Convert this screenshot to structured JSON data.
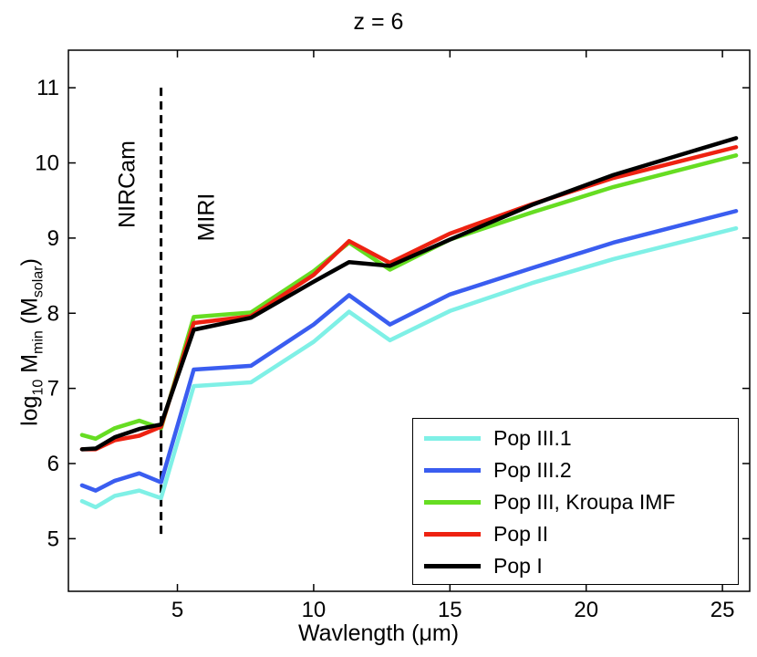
{
  "chart_data": {
    "type": "line",
    "title": "z = 6",
    "xlabel_prefix": "Wavlength (",
    "xlabel_mu": "μm",
    "xlabel_suffix": ")",
    "ylabel_main": "log",
    "ylabel_sub1": "10",
    "ylabel_mid": " M",
    "ylabel_sub2": "min",
    "ylabel_open": " (M",
    "ylabel_sub3": "solar",
    "ylabel_close": ")",
    "xlim": [
      1,
      26
    ],
    "ylim": [
      4.3,
      11.5
    ],
    "xticks": [
      5,
      10,
      15,
      20,
      25
    ],
    "yticks": [
      5,
      6,
      7,
      8,
      9,
      10,
      11
    ],
    "annotations": {
      "nircam": "NIRCam",
      "miri": "MIRI",
      "divider_x": 4.4,
      "divider_y_range": [
        5.0,
        11.0
      ]
    },
    "legend_position": "bottom-right",
    "series": [
      {
        "name": "Pop III.1",
        "color": "#7ff0e6",
        "x": [
          1.5,
          2.0,
          2.7,
          3.6,
          4.4,
          5.6,
          7.7,
          10.0,
          11.3,
          12.8,
          15.0,
          18.0,
          21.0,
          25.5
        ],
        "y": [
          5.5,
          5.42,
          5.57,
          5.64,
          5.54,
          7.03,
          7.08,
          7.62,
          8.02,
          7.64,
          8.03,
          8.4,
          8.72,
          9.13
        ]
      },
      {
        "name": "Pop III.2",
        "color": "#3a5df0",
        "x": [
          1.5,
          2.0,
          2.7,
          3.6,
          4.4,
          5.6,
          7.7,
          10.0,
          11.3,
          12.8,
          15.0,
          18.0,
          21.0,
          25.5
        ],
        "y": [
          5.71,
          5.64,
          5.77,
          5.87,
          5.75,
          7.25,
          7.3,
          7.85,
          8.24,
          7.85,
          8.25,
          8.6,
          8.94,
          9.36
        ]
      },
      {
        "name": "Pop III, Kroupa IMF",
        "color": "#66dd22",
        "x": [
          1.5,
          2.0,
          2.7,
          3.6,
          4.4,
          5.6,
          7.7,
          10.0,
          11.3,
          12.8,
          15.0,
          18.0,
          21.0,
          25.5
        ],
        "y": [
          6.38,
          6.33,
          6.47,
          6.57,
          6.47,
          7.95,
          8.01,
          8.56,
          8.94,
          8.58,
          8.98,
          9.34,
          9.68,
          10.1
        ]
      },
      {
        "name": "Pop II",
        "color": "#ee2211",
        "x": [
          1.5,
          2.0,
          2.7,
          3.6,
          4.4,
          5.6,
          7.7,
          10.0,
          11.3,
          12.8,
          15.0,
          18.0,
          21.0,
          25.5
        ],
        "y": [
          6.19,
          6.19,
          6.31,
          6.37,
          6.49,
          7.87,
          7.96,
          8.51,
          8.96,
          8.67,
          9.06,
          9.45,
          9.8,
          10.21
        ]
      },
      {
        "name": "Pop I",
        "color": "#000000",
        "x": [
          1.5,
          2.0,
          2.7,
          3.6,
          4.4,
          5.6,
          7.7,
          10.0,
          11.3,
          12.8,
          15.0,
          18.0,
          21.0,
          25.5
        ],
        "y": [
          6.19,
          6.2,
          6.35,
          6.46,
          6.52,
          7.78,
          7.94,
          8.42,
          8.68,
          8.63,
          8.98,
          9.44,
          9.84,
          10.33
        ]
      }
    ]
  }
}
